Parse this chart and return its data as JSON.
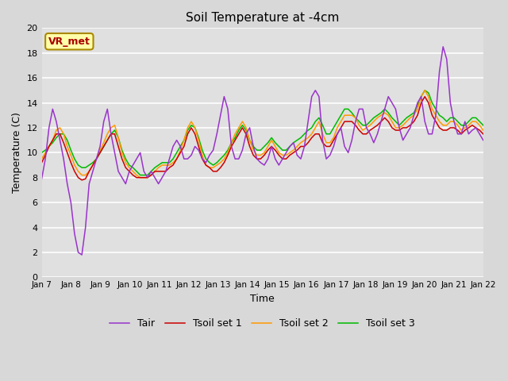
{
  "title": "Soil Temperature at -4cm",
  "xlabel": "Time",
  "ylabel": "Temperature (C)",
  "ylim": [
    0,
    20
  ],
  "fig_bg_color": "#d8d8d8",
  "plot_bg_color": "#e0e0e0",
  "annotation_text": "VR_met",
  "annotation_bg": "#ffffaa",
  "annotation_edge": "#aa8800",
  "annotation_text_color": "#aa0000",
  "tair_color": "#9933cc",
  "tsoil1_color": "#cc0000",
  "tsoil2_color": "#ff9900",
  "tsoil3_color": "#00bb00",
  "line_width": 1.1,
  "tick_labels": [
    "Jan 7",
    "Jan 8",
    "Jan 9",
    "Jan 10",
    "Jan 11",
    "Jan 12",
    "Jan 13",
    "Jan 14",
    "Jan 15",
    "Jan 16",
    "Jan 17",
    "Jan 18",
    "Jan 19",
    "Jan 20",
    "Jan 21",
    "Jan 22"
  ],
  "tair": [
    7.9,
    9.5,
    12.0,
    13.5,
    12.5,
    11.0,
    9.5,
    7.5,
    6.0,
    3.5,
    2.0,
    1.8,
    4.0,
    7.5,
    8.5,
    9.5,
    10.5,
    12.5,
    13.5,
    11.5,
    10.0,
    8.5,
    8.0,
    7.5,
    8.5,
    9.0,
    9.5,
    10.0,
    8.5,
    8.0,
    8.5,
    8.0,
    7.5,
    8.0,
    8.5,
    9.5,
    10.5,
    11.0,
    10.5,
    9.5,
    9.5,
    9.8,
    10.5,
    10.2,
    9.5,
    9.2,
    9.8,
    10.2,
    11.5,
    13.0,
    14.5,
    13.5,
    10.5,
    9.5,
    9.5,
    10.2,
    11.5,
    12.0,
    10.5,
    9.5,
    9.2,
    9.0,
    9.5,
    10.5,
    9.5,
    9.0,
    9.5,
    10.0,
    10.5,
    10.8,
    9.8,
    9.5,
    10.5,
    12.5,
    14.5,
    15.0,
    14.5,
    11.0,
    9.5,
    9.8,
    10.5,
    11.5,
    12.0,
    10.5,
    10.0,
    11.0,
    12.5,
    13.5,
    13.5,
    12.0,
    11.5,
    10.8,
    11.5,
    12.5,
    13.5,
    14.5,
    14.0,
    13.5,
    12.0,
    11.0,
    11.5,
    12.0,
    13.0,
    14.0,
    14.5,
    12.5,
    11.5,
    11.5,
    13.0,
    16.5,
    18.5,
    17.5,
    14.0,
    12.5,
    11.5,
    11.5,
    12.5,
    11.5,
    11.8,
    12.0,
    11.5,
    11.0
  ],
  "tsoil1": [
    9.2,
    9.8,
    10.5,
    11.0,
    11.5,
    11.5,
    10.8,
    10.0,
    9.2,
    8.5,
    8.0,
    7.8,
    7.9,
    8.5,
    9.0,
    9.5,
    10.0,
    10.5,
    11.0,
    11.5,
    11.5,
    10.5,
    9.5,
    8.8,
    8.5,
    8.2,
    8.0,
    8.0,
    8.0,
    8.0,
    8.2,
    8.5,
    8.5,
    8.5,
    8.5,
    8.8,
    9.0,
    9.5,
    10.0,
    10.5,
    11.5,
    12.0,
    11.5,
    10.5,
    9.5,
    9.0,
    8.8,
    8.5,
    8.5,
    8.8,
    9.2,
    9.8,
    10.5,
    11.0,
    11.5,
    12.0,
    11.5,
    10.5,
    9.8,
    9.5,
    9.5,
    9.8,
    10.2,
    10.5,
    10.2,
    9.8,
    9.5,
    9.5,
    9.8,
    10.0,
    10.2,
    10.5,
    10.5,
    10.8,
    11.2,
    11.5,
    11.5,
    10.8,
    10.5,
    10.5,
    11.0,
    11.5,
    12.0,
    12.5,
    12.5,
    12.5,
    12.2,
    11.8,
    11.5,
    11.5,
    11.8,
    12.0,
    12.2,
    12.5,
    12.8,
    12.5,
    12.0,
    11.8,
    11.8,
    12.0,
    12.0,
    12.2,
    12.5,
    13.0,
    14.0,
    14.5,
    14.0,
    13.0,
    12.5,
    12.0,
    11.8,
    11.8,
    12.0,
    12.0,
    11.8,
    11.5,
    11.8,
    12.0,
    12.2,
    12.0,
    11.8,
    11.5
  ],
  "tsoil2": [
    9.5,
    10.0,
    10.5,
    11.0,
    11.8,
    12.0,
    11.5,
    10.5,
    9.8,
    9.0,
    8.5,
    8.2,
    8.2,
    8.5,
    9.0,
    9.5,
    10.2,
    10.8,
    11.5,
    12.0,
    12.2,
    11.2,
    10.0,
    9.2,
    8.8,
    8.5,
    8.2,
    8.0,
    8.0,
    8.0,
    8.2,
    8.5,
    8.8,
    9.0,
    9.0,
    9.0,
    9.2,
    9.5,
    10.2,
    11.0,
    12.0,
    12.5,
    12.0,
    11.0,
    9.8,
    9.0,
    8.8,
    8.8,
    9.0,
    9.2,
    9.5,
    10.0,
    10.8,
    11.5,
    12.0,
    12.5,
    12.0,
    11.0,
    10.2,
    9.8,
    9.8,
    10.0,
    10.5,
    11.0,
    10.5,
    10.0,
    9.8,
    9.8,
    10.0,
    10.2,
    10.5,
    10.8,
    11.0,
    11.2,
    11.5,
    12.0,
    12.5,
    11.5,
    10.8,
    10.8,
    11.2,
    12.0,
    12.5,
    13.0,
    13.0,
    13.0,
    12.8,
    12.2,
    11.8,
    12.0,
    12.2,
    12.5,
    12.8,
    13.0,
    13.2,
    13.0,
    12.5,
    12.0,
    12.0,
    12.2,
    12.5,
    12.8,
    13.0,
    13.5,
    14.5,
    15.0,
    14.5,
    13.5,
    13.0,
    12.5,
    12.2,
    12.2,
    12.5,
    12.5,
    12.2,
    11.8,
    12.0,
    12.2,
    12.5,
    12.5,
    12.2,
    11.8
  ],
  "tsoil3": [
    10.0,
    10.2,
    10.5,
    10.8,
    11.2,
    11.5,
    11.5,
    11.0,
    10.2,
    9.5,
    9.0,
    8.8,
    8.8,
    9.0,
    9.2,
    9.5,
    10.0,
    10.5,
    11.0,
    11.5,
    11.8,
    11.2,
    10.2,
    9.5,
    9.0,
    8.8,
    8.5,
    8.2,
    8.2,
    8.2,
    8.5,
    8.8,
    9.0,
    9.2,
    9.2,
    9.2,
    9.5,
    10.0,
    10.5,
    11.0,
    11.8,
    12.2,
    12.0,
    11.2,
    10.2,
    9.5,
    9.2,
    9.0,
    9.2,
    9.5,
    9.8,
    10.2,
    10.8,
    11.2,
    11.8,
    12.2,
    11.8,
    11.0,
    10.5,
    10.2,
    10.2,
    10.5,
    10.8,
    11.2,
    10.8,
    10.5,
    10.2,
    10.2,
    10.5,
    10.8,
    11.0,
    11.2,
    11.5,
    11.8,
    12.0,
    12.5,
    12.8,
    12.2,
    11.5,
    11.5,
    12.0,
    12.5,
    13.0,
    13.5,
    13.5,
    13.2,
    12.8,
    12.5,
    12.2,
    12.2,
    12.5,
    12.8,
    13.0,
    13.2,
    13.5,
    13.2,
    12.8,
    12.5,
    12.2,
    12.5,
    12.8,
    13.0,
    13.2,
    13.8,
    14.5,
    15.0,
    14.8,
    14.0,
    13.5,
    13.0,
    12.8,
    12.5,
    12.8,
    12.8,
    12.5,
    12.2,
    12.2,
    12.5,
    12.8,
    12.8,
    12.5,
    12.2
  ]
}
